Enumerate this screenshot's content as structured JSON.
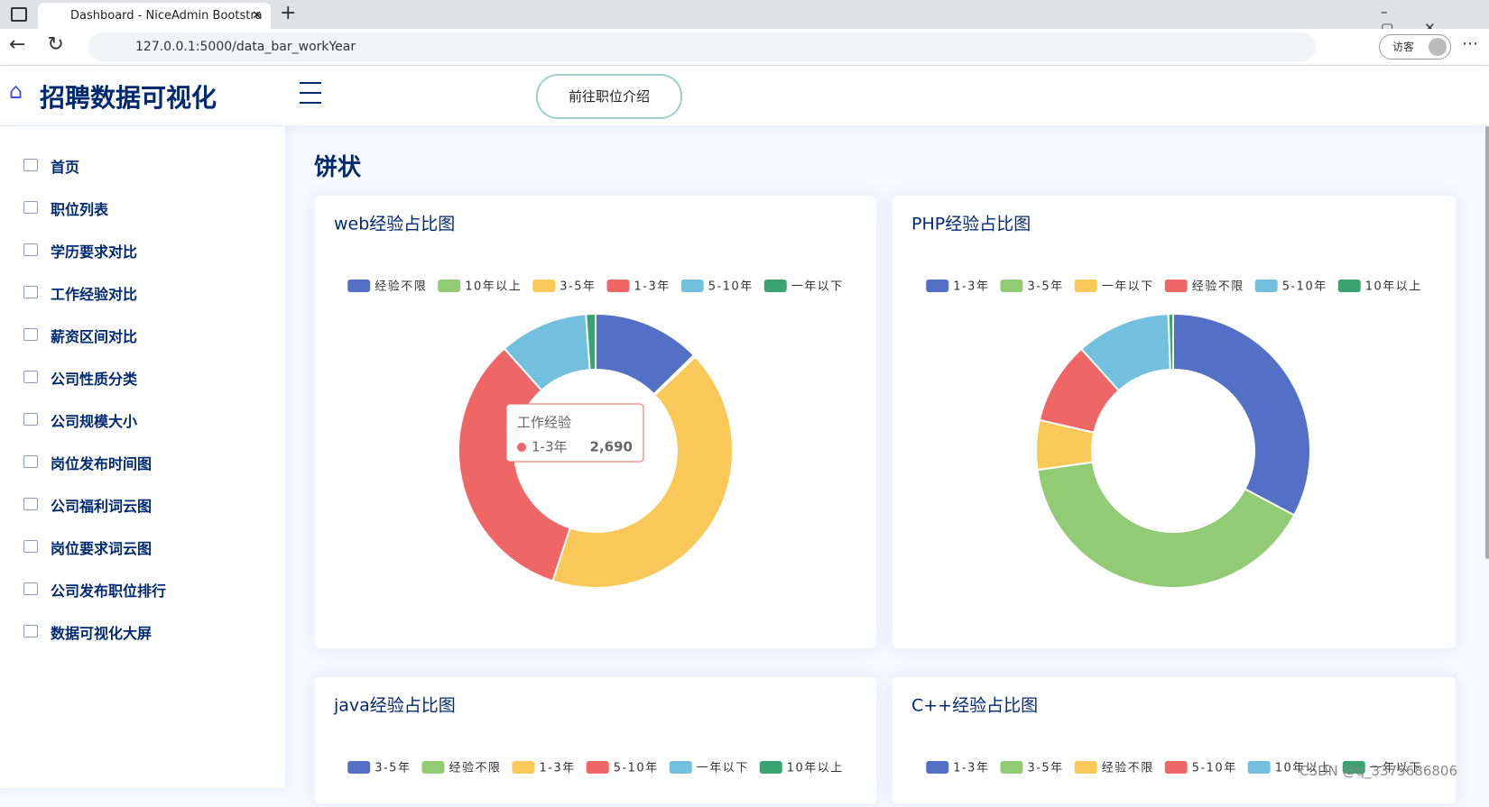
{
  "browser": {
    "tab_title": "Dashboard - NiceAdmin Bootstra",
    "url": "127.0.0.1:5000/data_bar_workYear",
    "profile": "访客"
  },
  "app": {
    "brand": "招聘数据可视化",
    "button": "前往职位介绍"
  },
  "sidebar": {
    "items": [
      "首页",
      "职位列表",
      "学历要求对比",
      "工作经验对比",
      "薪资区间对比",
      "公司性质分类",
      "公司规模大小",
      "岗位发布时间图",
      "公司福利词云图",
      "岗位要求词云图",
      "公司发布职位排行",
      "数据可视化大屏"
    ]
  },
  "content": {
    "heading": "饼状"
  },
  "chart_data": [
    {
      "type": "pie",
      "title": "web经验占比图",
      "series_name": "工作经验",
      "colors": [
        "#5470c6",
        "#91cc75",
        "#fac858",
        "#ee6666",
        "#73c0de",
        "#3ba272"
      ],
      "categories": [
        "经验不限",
        "10年以上",
        "3-5年",
        "1-3年",
        "5-10年",
        "一年以下"
      ],
      "values": [
        1026,
        20,
        3397,
        2690,
        844,
        91
      ],
      "value_labels": [
        null,
        null,
        null,
        "2,690",
        null,
        null
      ],
      "tooltip": true
    },
    {
      "type": "pie",
      "title": "PHP经验占比图",
      "colors": [
        "#5470c6",
        "#91cc75",
        "#fac858",
        "#ee6666",
        "#73c0de",
        "#3ba272"
      ],
      "categories": [
        "1-3年",
        "3-5年",
        "一年以下",
        "经验不限",
        "5-10年",
        "10年以上"
      ],
      "values": [
        118,
        144,
        21,
        35,
        40,
        2
      ]
    },
    {
      "type": "pie",
      "title": "java经验占比图",
      "colors": [
        "#5470c6",
        "#91cc75",
        "#fac858",
        "#ee6666",
        "#73c0de",
        "#3ba272"
      ],
      "categories": [
        "3-5年",
        "经验不限",
        "1-3年",
        "5-10年",
        "一年以下",
        "10年以上"
      ]
    },
    {
      "type": "pie",
      "title": "C++经验占比图",
      "colors": [
        "#5470c6",
        "#91cc75",
        "#fac858",
        "#ee6666",
        "#73c0de",
        "#3ba272"
      ],
      "categories": [
        "1-3年",
        "3-5年",
        "经验不限",
        "5-10年",
        "10年以上",
        "一年以下"
      ]
    }
  ],
  "watermark": "CSDN @q_3375686806"
}
